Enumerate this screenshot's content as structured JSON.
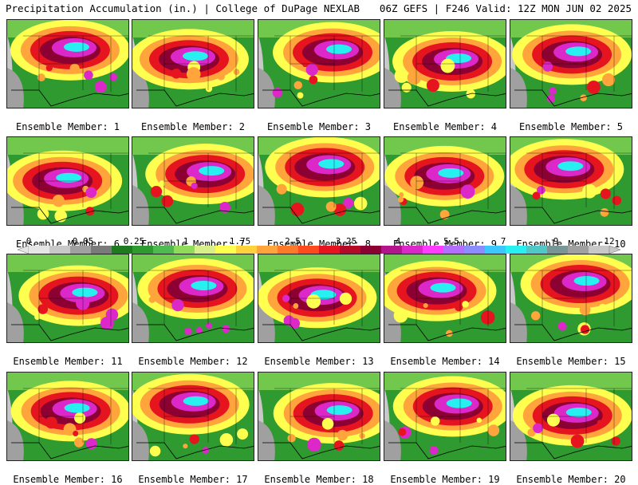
{
  "header": {
    "title": "Precipitation Accumulation (in.) | College of DuPage NEXLAB",
    "run_info": "06Z GEFS | F246 Valid: 12Z MON JUN 02 2025"
  },
  "colorbar": {
    "tick_labels": [
      "0",
      "0.05",
      "0.25",
      "1",
      "1.75",
      "2.5",
      "3.25",
      "4",
      "5.5",
      "7",
      "9",
      "12"
    ],
    "colors": [
      "#e6e6e6",
      "#c8c8c8",
      "#a0a0a0",
      "#7a7a7a",
      "#1e7a1e",
      "#2f9a2f",
      "#4fba4f",
      "#8fdc5a",
      "#d8f08a",
      "#ffff4f",
      "#ffd23c",
      "#ffa53c",
      "#ff7a28",
      "#ff4a1e",
      "#e6141e",
      "#b40a28",
      "#8c0032",
      "#b4148c",
      "#dc28c8",
      "#ff3cff",
      "#b46eff",
      "#8c8cff",
      "#3cc8ff",
      "#28f0f0",
      "#50c8c8",
      "#789696",
      "#a0a0a0",
      "#c8c8c8"
    ]
  },
  "panels": [
    {
      "label": "Ensemble Member: 1"
    },
    {
      "label": "Ensemble Member: 2"
    },
    {
      "label": "Ensemble Member: 3"
    },
    {
      "label": "Ensemble Member: 4"
    },
    {
      "label": "Ensemble Member: 5"
    },
    {
      "label": "Ensemble Member: 6"
    },
    {
      "label": "Ensemble Member: 7"
    },
    {
      "label": "Ensemble Member: 8"
    },
    {
      "label": "Ensemble Member: 9"
    },
    {
      "label": "Ensemble Member: 10"
    },
    {
      "label": "Ensemble Member: 11"
    },
    {
      "label": "Ensemble Member: 12"
    },
    {
      "label": "Ensemble Member: 13"
    },
    {
      "label": "Ensemble Member: 14"
    },
    {
      "label": "Ensemble Member: 15"
    },
    {
      "label": "Ensemble Member: 16"
    },
    {
      "label": "Ensemble Member: 17"
    },
    {
      "label": "Ensemble Member: 18"
    },
    {
      "label": "Ensemble Member: 19"
    },
    {
      "label": "Ensemble Member: 20"
    }
  ]
}
